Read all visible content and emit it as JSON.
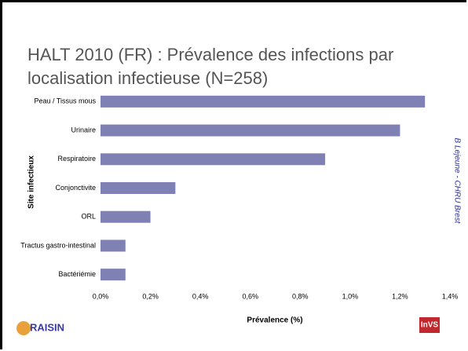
{
  "chart_data": {
    "type": "bar",
    "orientation": "horizontal",
    "title": [
      "HALT 2010 (FR) : Prévalence des infections par",
      "localisation infectieuse (N=258)"
    ],
    "categories": [
      "Peau / Tissus mous",
      "Urinaire",
      "Respiratoire",
      "Conjonctivite",
      "ORL",
      "Tractus gastro-intestinal",
      "Bactériémie"
    ],
    "values": [
      1.3,
      1.2,
      0.9,
      0.3,
      0.2,
      0.1,
      0.1
    ],
    "color": "#7f80b3",
    "xlim": [
      0,
      1.4
    ],
    "xticks": [
      {
        "value": 0,
        "label": "0,0%"
      },
      {
        "value": 0.2,
        "label": "0,2%"
      },
      {
        "value": 0.4,
        "label": "0,4%"
      },
      {
        "value": 0.6,
        "label": "0,6%"
      },
      {
        "value": 0.8,
        "label": "0,8%"
      },
      {
        "value": 1.0,
        "label": "1,0%"
      },
      {
        "value": 1.2,
        "label": "1,2%"
      },
      {
        "value": 1.4,
        "label": "1,4%"
      }
    ],
    "xlabel": "Prévalence (%)",
    "ylabel": "Site infectieux",
    "grid": false,
    "annotation": "B Lejeune - CHRU Brest",
    "logos": [
      "RAISIN",
      "InVS"
    ]
  }
}
